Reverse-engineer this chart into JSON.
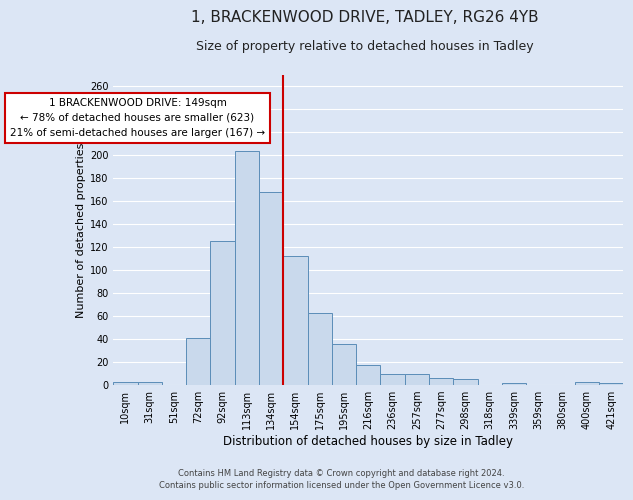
{
  "title_line1": "1, BRACKENWOOD DRIVE, TADLEY, RG26 4YB",
  "title_line2": "Size of property relative to detached houses in Tadley",
  "xlabel": "Distribution of detached houses by size in Tadley",
  "ylabel": "Number of detached properties",
  "categories": [
    "10sqm",
    "31sqm",
    "51sqm",
    "72sqm",
    "92sqm",
    "113sqm",
    "134sqm",
    "154sqm",
    "175sqm",
    "195sqm",
    "216sqm",
    "236sqm",
    "257sqm",
    "277sqm",
    "298sqm",
    "318sqm",
    "339sqm",
    "359sqm",
    "380sqm",
    "400sqm",
    "421sqm"
  ],
  "values": [
    3,
    3,
    0,
    41,
    125,
    204,
    168,
    112,
    63,
    36,
    17,
    10,
    10,
    6,
    5,
    0,
    2,
    0,
    0,
    3,
    2
  ],
  "bar_color": "#c9d9ec",
  "bar_edge_color": "#5b8db8",
  "vline_x": 7.0,
  "vline_color": "#cc0000",
  "annotation_line1": "1 BRACKENWOOD DRIVE: 149sqm",
  "annotation_line2": "← 78% of detached houses are smaller (623)",
  "annotation_line3": "21% of semi-detached houses are larger (167) →",
  "annotation_box_facecolor": "#ffffff",
  "annotation_box_edgecolor": "#cc0000",
  "ylim": [
    0,
    270
  ],
  "yticks": [
    0,
    20,
    40,
    60,
    80,
    100,
    120,
    140,
    160,
    180,
    200,
    220,
    240,
    260
  ],
  "background_color": "#dce6f5",
  "plot_bg_color": "#dce6f5",
  "fig_bg_color": "#dce6f5",
  "grid_color": "#ffffff",
  "footer_line1": "Contains HM Land Registry data © Crown copyright and database right 2024.",
  "footer_line2": "Contains public sector information licensed under the Open Government Licence v3.0.",
  "title1_fontsize": 11,
  "title2_fontsize": 9,
  "ylabel_fontsize": 8,
  "xlabel_fontsize": 8.5,
  "tick_fontsize": 7,
  "footer_fontsize": 6,
  "ann_fontsize": 7.5
}
